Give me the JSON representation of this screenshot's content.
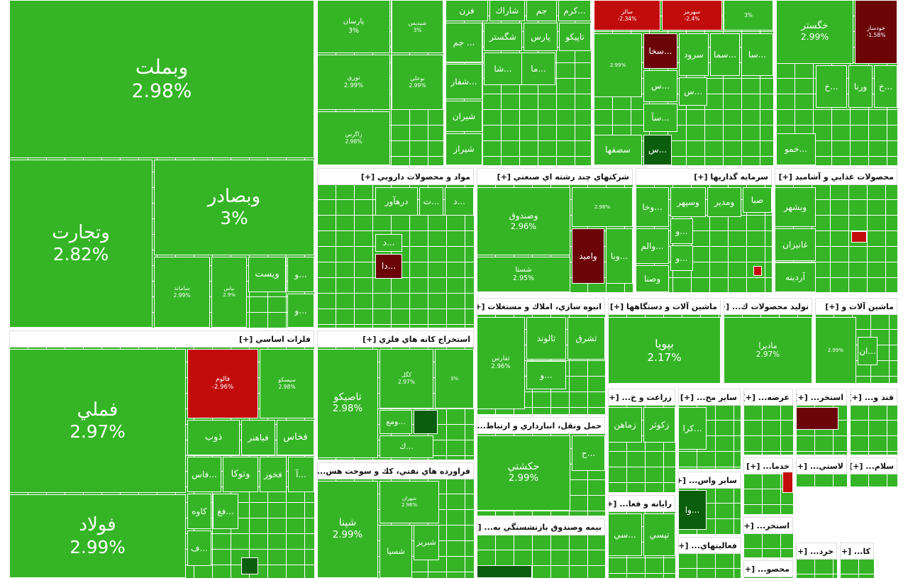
{
  "sectors": [
    {
      "tiles": [
        {
          "label": "وبملت",
          "pct": "2.98%"
        },
        {
          "label": "وتجارت",
          "pct": "2.82%"
        },
        {
          "label": "وبصادر",
          "pct": "3%"
        },
        {
          "label": "ساماند",
          "pct": "2.99%"
        },
        {
          "label": "بپاس",
          "pct": "2.9%"
        },
        {
          "label": "ويست"
        },
        {
          "label": "و..."
        },
        {
          "label": "و..."
        }
      ]
    },
    {
      "title": "فلزات اساسي [+]",
      "tiles": [
        {
          "label": "فملي",
          "pct": "2.97%"
        },
        {
          "label": "فولاد",
          "pct": "2.99%"
        },
        {
          "label": "فالوم",
          "pct": "-2.96%"
        },
        {
          "label": "سيسكو",
          "pct": "2.98%"
        },
        {
          "label": "ذوب"
        },
        {
          "label": "فباهنر"
        },
        {
          "label": "فخاس"
        },
        {
          "label": "فاس..."
        },
        {
          "label": "وتوكا"
        },
        {
          "label": "فخوز"
        },
        {
          "label": "آ..."
        },
        {
          "label": "كاوه"
        },
        {
          "label": "فغ..."
        },
        {
          "label": "ف..."
        }
      ]
    },
    {
      "tiles": [
        {
          "label": "پارسان",
          "pct": "3%"
        },
        {
          "label": "شيديس",
          "pct": "3%"
        },
        {
          "label": "نوري",
          "pct": "2.99%"
        },
        {
          "label": "بوعلي",
          "pct": "2.99%"
        },
        {
          "label": "زاگرس",
          "pct": "2.98%"
        }
      ]
    },
    {
      "tiles": [
        {
          "label": "فزن"
        },
        {
          "label": "شاراك"
        },
        {
          "label": "جم"
        },
        {
          "label": "كرم..."
        },
        {
          "label": "جم ..."
        },
        {
          "label": "شگستر"
        },
        {
          "label": "پارس"
        },
        {
          "label": "تاپيكو"
        },
        {
          "label": "شا..."
        },
        {
          "label": "ما..."
        },
        {
          "label": "شفار..."
        },
        {
          "label": "شيران"
        },
        {
          "label": "شيراز"
        }
      ]
    },
    {
      "tiles": [
        {
          "label": "سالر",
          "pct": "-2.34%"
        },
        {
          "label": "سهرمز",
          "pct": "-2.4%"
        },
        {
          "pct": "3%"
        },
        {
          "pct": "2.99%"
        },
        {
          "label": "سخا..."
        },
        {
          "label": "سرود"
        },
        {
          "label": "سما..."
        },
        {
          "label": "سا..."
        },
        {
          "label": "س..."
        },
        {
          "label": "س..."
        },
        {
          "label": "سآ..."
        },
        {
          "label": "سصفها"
        },
        {
          "label": "س..."
        }
      ]
    },
    {
      "tiles": [
        {
          "label": "خگستر",
          "pct": "2.99%"
        },
        {
          "label": "خودساز",
          "pct": "-1.58%"
        },
        {
          "label": "خ..."
        },
        {
          "label": "ورنا"
        },
        {
          "label": "خ..."
        },
        {
          "label": "خمو..."
        }
      ]
    },
    {
      "title": "مواد و محصولات دارويي [+]",
      "tiles": [
        {
          "label": "درهآور"
        },
        {
          "label": "ت..."
        },
        {
          "label": "د..."
        },
        {
          "label": "د..."
        },
        {
          "label": "دا..."
        }
      ]
    },
    {
      "title": "شركتهاي چند رشته اي صنعتي [+]",
      "tiles": [
        {
          "label": "وصندوق",
          "pct": "2.96%"
        },
        {
          "label": "شستا",
          "pct": "2.95%"
        },
        {
          "pct": "2.98%"
        },
        {
          "label": "واميد"
        },
        {
          "label": "وبا..."
        }
      ]
    },
    {
      "title": "سرمايه گذاريها [+]",
      "tiles": [
        {
          "label": "صبا"
        },
        {
          "label": "ومدير"
        },
        {
          "label": "وسپهر"
        },
        {
          "label": "وخا..."
        },
        {
          "label": "و..."
        },
        {
          "label": "والم..."
        },
        {
          "label": "و..."
        },
        {
          "label": "وصنا"
        }
      ]
    },
    {
      "title": "محصولات غذايي و آشاميد [+]",
      "tiles": [
        {
          "label": "وبشهر"
        },
        {
          "label": "غانيزان"
        },
        {
          "label": "آردينه"
        }
      ]
    },
    {
      "title": "انبوه سازي، املاك و مستغلات [+]",
      "tiles": [
        {
          "label": "ثشرق"
        },
        {
          "label": "ثالوند"
        },
        {
          "label": "ثفارس",
          "pct": "2.96%"
        },
        {
          "label": "و..."
        }
      ]
    },
    {
      "title": "ماشين آلات و دستگاهها [+]",
      "tiles": [
        {
          "label": "بپويا",
          "pct": "2.17%"
        }
      ]
    },
    {
      "title": "توليد محصولات ك... [+]",
      "tiles": [
        {
          "label": "ماديرا",
          "pct": "2.97%"
        }
      ]
    },
    {
      "title": "ماشين آلات و [+]",
      "tiles": [
        {
          "pct": "2.99%"
        },
        {
          "label": "ان..."
        }
      ]
    },
    {
      "title": "استخراج كانه هاي فلزي [+]",
      "tiles": [
        {
          "label": "تاصيكو",
          "pct": "2.98%"
        },
        {
          "label": "كگل",
          "pct": "2.97%"
        },
        {
          "pct": "3%"
        },
        {
          "label": "ومع..."
        },
        {
          "label": "ك..."
        }
      ]
    },
    {
      "title": "فراورده هاي نفتي، كك و سوخت هس... [+]",
      "tiles": [
        {
          "label": "شپنا",
          "pct": "2.99%"
        },
        {
          "label": "شهران",
          "pct": "2.96%"
        },
        {
          "label": "شبريز"
        },
        {
          "label": "شسپا"
        }
      ]
    },
    {
      "title": "حمل ونقل، انبارداري و ارتباط... [+]",
      "tiles": [
        {
          "label": "حكشتي",
          "pct": "2.99%"
        },
        {
          "label": "ح..."
        }
      ]
    },
    {
      "title": "بيمه وصندوق بازنشستگي به... [+]",
      "tiles": []
    },
    {
      "title": "زراعت و خ... [+]",
      "tiles": [
        {
          "label": "زكوثر"
        },
        {
          "label": "زماهن"
        }
      ]
    },
    {
      "title": "رايانه و فعا... [+]",
      "tiles": [
        {
          "label": "تپسي"
        },
        {
          "label": "سي..."
        }
      ]
    },
    {
      "title": "ساير مح... [+]",
      "tiles": [
        {
          "label": "كرا..."
        }
      ]
    },
    {
      "title": "ساير واس... [+]",
      "tiles": [
        {
          "label": "وا..."
        }
      ]
    },
    {
      "title": "فعاليتهاي... [+]",
      "tiles": []
    },
    {
      "title": "عرضه... [+]",
      "tiles": []
    },
    {
      "title": "استخر... [+]",
      "tiles": []
    },
    {
      "title": "قند و... [+]",
      "tiles": []
    },
    {
      "title": "خدما... [+]",
      "tiles": []
    },
    {
      "title": "لاستي... [+]",
      "tiles": []
    },
    {
      "title": "سلام... [+]",
      "tiles": []
    },
    {
      "title": "استخر... [+]",
      "tiles": []
    },
    {
      "title": "محصو... [+]",
      "tiles": []
    },
    {
      "title": "خرد... [+]",
      "tiles": []
    },
    {
      "title": "كا... [+]",
      "tiles": []
    }
  ]
}
